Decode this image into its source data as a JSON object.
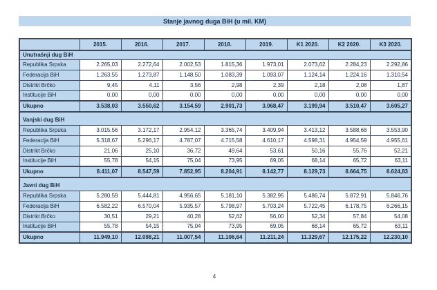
{
  "title": "Stanje javnog duga BiH (u mil. KM)",
  "page_number": "4",
  "colors": {
    "band_bg": "#BDD7EE",
    "border": "#3D4759",
    "text": "#17283F"
  },
  "table": {
    "columns": [
      "",
      "2015.",
      "2016.",
      "2017.",
      "2018.",
      "2019.",
      "K1 2020.",
      "K2 2020.",
      "K3 2020."
    ],
    "sections": [
      {
        "name": "Unutrašnji dug BiH",
        "rows": [
          {
            "label": "Republika Srpska",
            "values": [
              "2.265,03",
              "2.272,64",
              "2.002,53",
              "1.815,36",
              "1.973,01",
              "2.073,62",
              "2.284,23",
              "2.292,86"
            ]
          },
          {
            "label": "Federacija BiH",
            "values": [
              "1.263,55",
              "1.273,87",
              "1.148,50",
              "1.083,39",
              "1.093,07",
              "1.124,14",
              "1.224,16",
              "1.310,54"
            ]
          },
          {
            "label": "Distrikt Brčko",
            "values": [
              "9,45",
              "4,11",
              "3,56",
              "2,98",
              "2,39",
              "2,18",
              "2,08",
              "1,87"
            ]
          },
          {
            "label": "Institucije BiH",
            "values": [
              "0,00",
              "0,00",
              "0,00",
              "0,00",
              "0,00",
              "0,00",
              "0,00",
              "0,00"
            ]
          }
        ],
        "total": {
          "label": "Ukupno",
          "values": [
            "3.538,03",
            "3.550,62",
            "3.154,59",
            "2.901,73",
            "3.068,47",
            "3.199,94",
            "3.510,47",
            "3.605,27"
          ]
        }
      },
      {
        "name": "Vanjski dug BiH",
        "rows": [
          {
            "label": "Republika Srpska",
            "values": [
              "3.015,56",
              "3.172,17",
              "2.954,12",
              "3.365,74",
              "3.409,94",
              "3.413,12",
              "3.588,68",
              "3.553,90"
            ]
          },
          {
            "label": "Federacija BiH",
            "values": [
              "5.318,67",
              "5.296,17",
              "4.787,07",
              "4.715,58",
              "4.610,17",
              "4.598,31",
              "4.954,59",
              "4.955,61"
            ]
          },
          {
            "label": "Distrikt Brčko",
            "values": [
              "21,06",
              "25,10",
              "36,72",
              "49,64",
              "53,61",
              "50,16",
              "55,76",
              "52,21"
            ]
          },
          {
            "label": "Institucije BiH",
            "values": [
              "55,78",
              "54,15",
              "75,04",
              "73,95",
              "69,05",
              "68,14",
              "65,72",
              "63,11"
            ]
          }
        ],
        "total": {
          "label": "Ukupno",
          "values": [
            "8.411,07",
            "8.547,59",
            "7.852,95",
            "8.204,91",
            "8.142,77",
            "8.129,73",
            "8.664,75",
            "8.624,83"
          ]
        }
      },
      {
        "name": "Javni dug BiH",
        "rows": [
          {
            "label": "Republika Srpska",
            "values": [
              "5.280,59",
              "5.444,81",
              "4.956,65",
              "5.181,10",
              "5.382,95",
              "5.486,74",
              "5.872,91",
              "5.846,76"
            ]
          },
          {
            "label": "Federacija BiH",
            "values": [
              "6.582,22",
              "6.570,04",
              "5.935,57",
              "5.798,97",
              "5.703,24",
              "5.722,45",
              "6.178,75",
              "6.266,15"
            ]
          },
          {
            "label": "Distrikt Brčko",
            "values": [
              "30,51",
              "29,21",
              "40,28",
              "52,62",
              "56,00",
              "52,34",
              "57,84",
              "54,08"
            ]
          },
          {
            "label": "Institucije BiH",
            "values": [
              "55,78",
              "54,15",
              "75,04",
              "73,95",
              "69,05",
              "68,14",
              "65,72",
              "63,11"
            ]
          }
        ],
        "total": {
          "label": "Ukupno",
          "values": [
            "11.949,10",
            "12.098,21",
            "11.007,54",
            "11.106,64",
            "11.211,24",
            "11.329,67",
            "12.175,22",
            "12.230,10"
          ]
        }
      }
    ]
  }
}
